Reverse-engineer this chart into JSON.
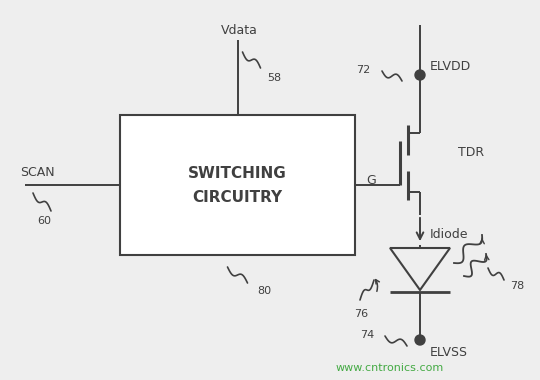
{
  "bg_color": "#eeeeee",
  "line_color": "#404040",
  "text_color": "#404040",
  "watermark_color": "#44aa44",
  "watermark": "www.cntronics.com",
  "box_label1": "SWITCHING",
  "box_label2": "CIRCUITRY",
  "labels": {
    "vdata": "Vdata",
    "scan": "SCAN",
    "elvdd": "ELVDD",
    "elvss": "ELVSS",
    "tdr": "TDR",
    "idiode": "Idiode",
    "g": "G",
    "n58": "58",
    "n60": "60",
    "n72": "72",
    "n74": "74",
    "n76": "76",
    "n78": "78",
    "n80": "80"
  },
  "figsize": [
    5.4,
    3.8
  ],
  "dpi": 100
}
